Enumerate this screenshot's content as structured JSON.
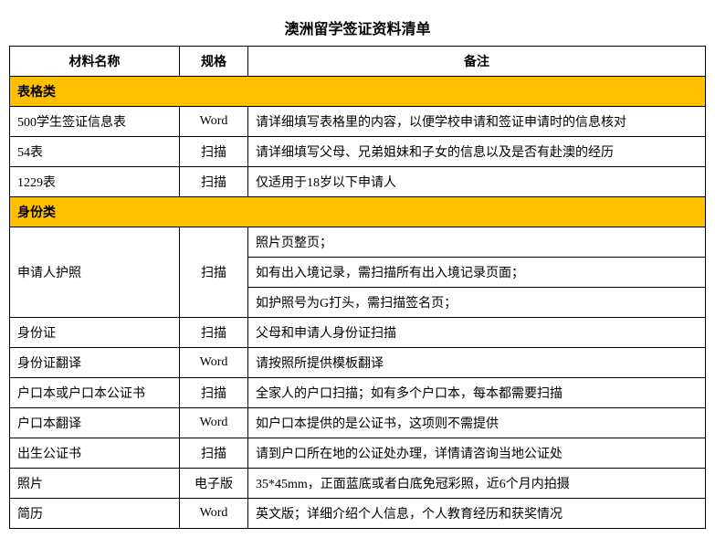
{
  "title": "澳洲留学签证资料清单",
  "headers": {
    "name": "材料名称",
    "spec": "规格",
    "note": "备注"
  },
  "colors": {
    "section_bg": "#ffc000",
    "border": "#000000",
    "background": "#ffffff"
  },
  "sections": [
    {
      "label": "表格类",
      "rows": [
        {
          "name": "500学生签证信息表",
          "spec": "Word",
          "notes": [
            "请详细填写表格里的内容，以便学校申请和签证申请时的信息核对"
          ]
        },
        {
          "name": "54表",
          "spec": "扫描",
          "notes": [
            "请详细填写父母、兄弟姐妹和子女的信息以及是否有赴澳的经历"
          ]
        },
        {
          "name": "1229表",
          "spec": "扫描",
          "notes": [
            "仅适用于18岁以下申请人"
          ]
        }
      ]
    },
    {
      "label": "身份类",
      "rows": [
        {
          "name": "申请人护照",
          "spec": "扫描",
          "notes": [
            "照片页整页；",
            "如有出入境记录，需扫描所有出入境记录页面；",
            "如护照号为G打头，需扫描签名页；"
          ]
        },
        {
          "name": "身份证",
          "spec": "扫描",
          "notes": [
            "父母和申请人身份证扫描"
          ]
        },
        {
          "name": "身份证翻译",
          "spec": "Word",
          "notes": [
            "请按照所提供模板翻译"
          ]
        },
        {
          "name": "户口本或户口本公证书",
          "spec": "扫描",
          "notes": [
            "全家人的户口扫描；如有多个户口本，每本都需要扫描"
          ]
        },
        {
          "name": "户口本翻译",
          "spec": "Word",
          "notes": [
            "如户口本提供的是公证书，这项则不需提供"
          ]
        },
        {
          "name": "出生公证书",
          "spec": "扫描",
          "notes": [
            "请到户口所在地的公证处办理，详情请咨询当地公证处"
          ]
        },
        {
          "name": "照片",
          "spec": "电子版",
          "notes": [
            "35*45mm，正面蓝底或者白底免冠彩照，近6个月内拍摄"
          ]
        },
        {
          "name": "简历",
          "spec": "Word",
          "notes": [
            "英文版；详细介绍个人信息，个人教育经历和获奖情况"
          ]
        }
      ]
    }
  ]
}
